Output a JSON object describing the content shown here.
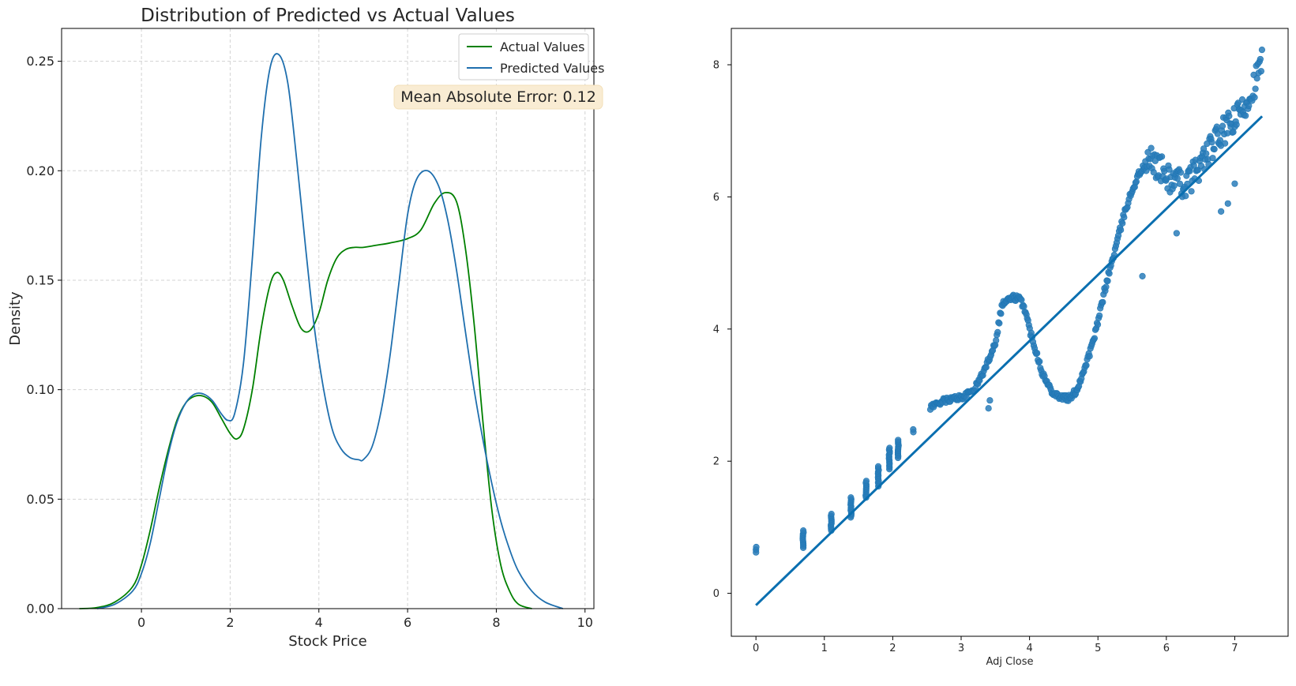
{
  "colors": {
    "actual": "#008000",
    "predicted": "#1f6fae",
    "scatter": "#1f77b4",
    "scatter_fill": "#2a7cba",
    "regression": "#0a6fb0",
    "grid": "#d3d3d3",
    "annotation_bg": "#f9ecd3",
    "annotation_border": "#f3dfb8"
  },
  "chart_data": [
    {
      "type": "line",
      "title": "Distribution of Predicted vs Actual Values",
      "xlabel": "Stock Price",
      "ylabel": "Density",
      "xlim": [
        -1.8,
        10.2
      ],
      "ylim": [
        0,
        0.265
      ],
      "xticks": [
        0,
        2,
        4,
        6,
        8,
        10
      ],
      "xtick_labels": [
        "0",
        "2",
        "4",
        "6",
        "8",
        "10"
      ],
      "yticks": [
        0.0,
        0.05,
        0.1,
        0.15,
        0.2,
        0.25
      ],
      "ytick_labels": [
        "0.00",
        "0.05",
        "0.10",
        "0.15",
        "0.20",
        "0.25"
      ],
      "grid": true,
      "legend": "top-right",
      "annotation": "Mean Absolute Error: 0.12",
      "series": [
        {
          "name": "Actual Values",
          "x": [
            -1.4,
            -1.0,
            -0.6,
            -0.2,
            0.0,
            0.2,
            0.4,
            0.6,
            0.8,
            1.0,
            1.2,
            1.4,
            1.6,
            1.8,
            2.0,
            2.15,
            2.3,
            2.5,
            2.7,
            2.9,
            3.05,
            3.2,
            3.4,
            3.6,
            3.8,
            4.0,
            4.2,
            4.4,
            4.6,
            4.8,
            5.0,
            5.3,
            5.6,
            6.0,
            6.3,
            6.6,
            6.85,
            7.1,
            7.3,
            7.5,
            7.7,
            7.9,
            8.1,
            8.3,
            8.5,
            8.8
          ],
          "y": [
            0.0,
            0.0005,
            0.003,
            0.01,
            0.02,
            0.036,
            0.055,
            0.072,
            0.086,
            0.094,
            0.097,
            0.097,
            0.094,
            0.087,
            0.08,
            0.0775,
            0.082,
            0.1,
            0.128,
            0.148,
            0.1535,
            0.15,
            0.138,
            0.128,
            0.127,
            0.135,
            0.15,
            0.16,
            0.164,
            0.165,
            0.165,
            0.166,
            0.167,
            0.169,
            0.173,
            0.185,
            0.19,
            0.186,
            0.165,
            0.13,
            0.085,
            0.045,
            0.02,
            0.008,
            0.002,
            0.0
          ]
        },
        {
          "name": "Predicted Values",
          "x": [
            -1.0,
            -0.6,
            -0.2,
            0.0,
            0.2,
            0.4,
            0.6,
            0.8,
            1.0,
            1.2,
            1.4,
            1.6,
            1.8,
            1.95,
            2.1,
            2.3,
            2.5,
            2.7,
            2.9,
            3.1,
            3.3,
            3.5,
            3.7,
            3.9,
            4.1,
            4.3,
            4.5,
            4.7,
            4.9,
            5.0,
            5.2,
            5.4,
            5.6,
            5.8,
            6.0,
            6.2,
            6.45,
            6.7,
            6.9,
            7.1,
            7.3,
            7.5,
            7.7,
            7.9,
            8.1,
            8.3,
            8.5,
            8.8,
            9.1,
            9.5
          ],
          "y": [
            0.0,
            0.002,
            0.008,
            0.016,
            0.03,
            0.05,
            0.07,
            0.085,
            0.094,
            0.098,
            0.098,
            0.095,
            0.089,
            0.086,
            0.089,
            0.112,
            0.16,
            0.215,
            0.247,
            0.253,
            0.24,
            0.205,
            0.165,
            0.128,
            0.101,
            0.082,
            0.073,
            0.069,
            0.068,
            0.068,
            0.074,
            0.09,
            0.115,
            0.148,
            0.18,
            0.196,
            0.2,
            0.193,
            0.178,
            0.155,
            0.127,
            0.1,
            0.077,
            0.057,
            0.04,
            0.027,
            0.017,
            0.008,
            0.003,
            0.0
          ]
        }
      ]
    },
    {
      "type": "scatter",
      "title": "",
      "xlabel": "Adj Close",
      "ylabel": "",
      "xlim": [
        -0.36,
        7.78
      ],
      "ylim": [
        -0.65,
        8.55
      ],
      "xticks": [
        0,
        1,
        2,
        3,
        4,
        5,
        6,
        7
      ],
      "xtick_labels": [
        "0",
        "1",
        "2",
        "3",
        "4",
        "5",
        "6",
        "7"
      ],
      "yticks": [
        0,
        2,
        4,
        6,
        8
      ],
      "ytick_labels": [
        "0",
        "2",
        "4",
        "6",
        "8"
      ],
      "grid": false,
      "regression_line": {
        "x": [
          0.0,
          7.4
        ],
        "y": [
          -0.18,
          7.22
        ]
      },
      "trend": {
        "x": [
          2.55,
          2.7,
          2.9,
          3.05,
          3.2,
          3.35,
          3.5,
          3.6,
          3.7,
          3.78,
          3.85,
          3.92,
          4.0,
          4.1,
          4.2,
          4.3,
          4.4,
          4.5,
          4.6,
          4.7,
          4.8,
          4.9,
          5.0,
          5.1,
          5.2,
          5.3,
          5.4,
          5.5,
          5.6,
          5.7,
          5.8,
          5.9,
          6.0,
          6.1,
          6.2,
          6.3,
          6.4,
          6.5,
          6.6,
          6.7,
          6.8,
          6.9,
          7.0,
          7.1,
          7.2,
          7.3,
          7.4
        ],
        "y": [
          2.82,
          2.9,
          2.95,
          2.98,
          3.1,
          3.4,
          3.8,
          4.38,
          4.45,
          4.48,
          4.45,
          4.35,
          4.0,
          3.65,
          3.3,
          3.1,
          3.0,
          2.96,
          2.95,
          3.1,
          3.4,
          3.7,
          4.1,
          4.6,
          5.0,
          5.4,
          5.8,
          6.1,
          6.35,
          6.5,
          6.55,
          6.45,
          6.3,
          6.25,
          6.2,
          6.2,
          6.35,
          6.5,
          6.65,
          6.8,
          6.95,
          7.05,
          7.15,
          7.3,
          7.5,
          7.75,
          8.05
        ]
      },
      "clusters": [
        {
          "x": 0.0,
          "y_min": 0.62,
          "y_max": 0.7
        },
        {
          "x": 0.69,
          "y_min": 0.69,
          "y_max": 0.95
        },
        {
          "x": 1.1,
          "y_min": 0.95,
          "y_max": 1.2
        },
        {
          "x": 1.39,
          "y_min": 1.15,
          "y_max": 1.45
        },
        {
          "x": 1.61,
          "y_min": 1.45,
          "y_max": 1.7
        },
        {
          "x": 1.79,
          "y_min": 1.62,
          "y_max": 1.92
        },
        {
          "x": 1.95,
          "y_min": 1.88,
          "y_max": 2.2
        },
        {
          "x": 2.08,
          "y_min": 2.05,
          "y_max": 2.32
        },
        {
          "x": 2.3,
          "y_min": 2.44,
          "y_max": 2.48
        }
      ],
      "outliers": {
        "x": [
          5.65,
          3.4,
          3.42,
          6.15,
          6.8,
          6.9,
          7.0
        ],
        "y": [
          4.8,
          2.8,
          2.92,
          5.45,
          5.78,
          5.9,
          6.2
        ]
      }
    }
  ]
}
